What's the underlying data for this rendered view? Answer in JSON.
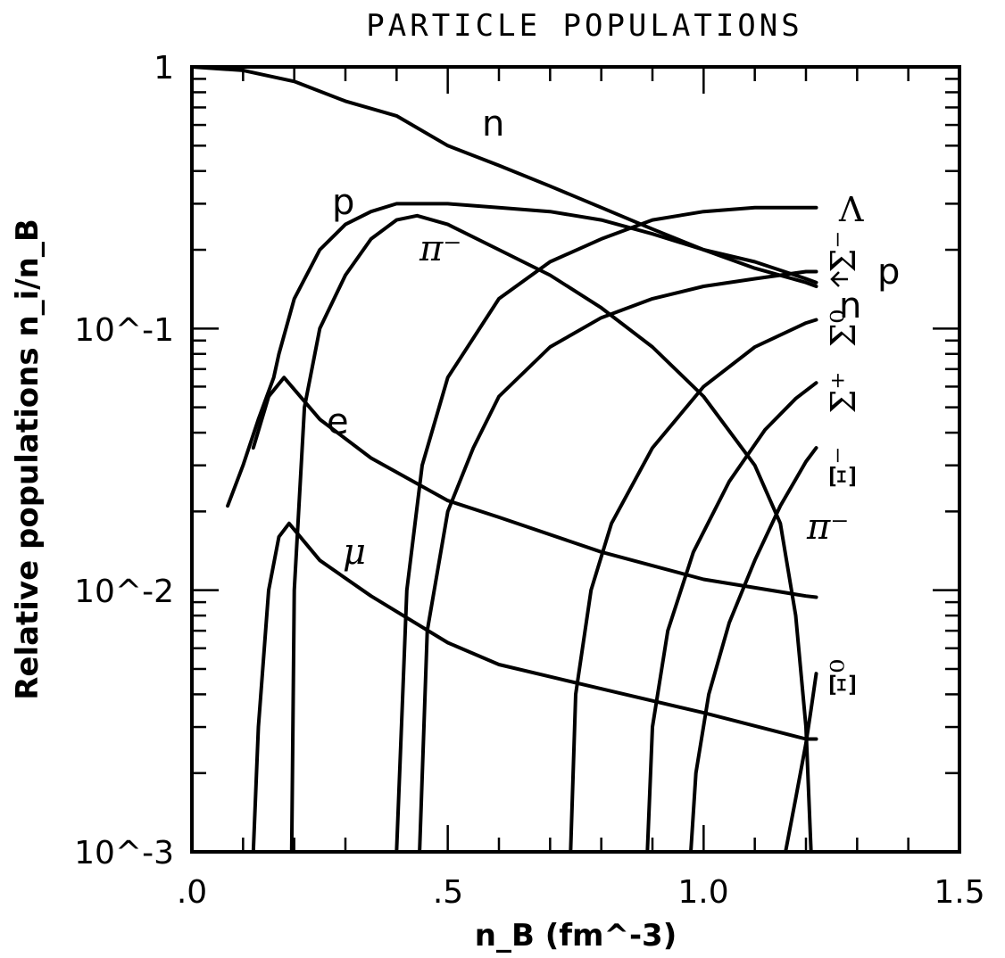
{
  "chart_data": {
    "type": "line",
    "title": "PARTICLE POPULATIONS",
    "xlabel": "n_B (fm^-3)",
    "ylabel": "Relative populations n_i/n_B",
    "xscale": "linear",
    "yscale": "log",
    "xlim": [
      0,
      1.5
    ],
    "ylim": [
      0.001,
      1
    ],
    "x_ticks": [
      ".0",
      ".5",
      "1.0",
      "1.5"
    ],
    "y_ticks": [
      "10^-3",
      "10^-2",
      "10^-1",
      "1"
    ],
    "grid": false,
    "series": [
      {
        "name": "n",
        "label": "n",
        "x": [
          0.0,
          0.1,
          0.2,
          0.3,
          0.4,
          0.5,
          0.6,
          0.7,
          0.8,
          0.9,
          1.0,
          1.1,
          1.2,
          1.22
        ],
        "y": [
          1.0,
          0.97,
          0.88,
          0.74,
          0.65,
          0.5,
          0.42,
          0.35,
          0.29,
          0.24,
          0.2,
          0.17,
          0.15,
          0.145
        ]
      },
      {
        "name": "p",
        "label": "p",
        "x": [
          0.07,
          0.1,
          0.13,
          0.16,
          0.17,
          0.2,
          0.25,
          0.3,
          0.35,
          0.4,
          0.45,
          0.5,
          0.6,
          0.7,
          0.8,
          0.9,
          1.0,
          1.1,
          1.2,
          1.22
        ],
        "y": [
          0.021,
          0.03,
          0.045,
          0.065,
          0.08,
          0.13,
          0.2,
          0.25,
          0.28,
          0.3,
          0.3,
          0.3,
          0.29,
          0.28,
          0.26,
          0.23,
          0.2,
          0.18,
          0.155,
          0.15
        ]
      },
      {
        "name": "pi-",
        "label": "π⁻",
        "x": [
          0.195,
          0.2,
          0.22,
          0.25,
          0.3,
          0.35,
          0.4,
          0.44,
          0.5,
          0.6,
          0.7,
          0.8,
          0.9,
          1.0,
          1.1,
          1.15,
          1.18,
          1.2,
          1.21
        ],
        "y": [
          0.001,
          0.01,
          0.05,
          0.1,
          0.16,
          0.22,
          0.26,
          0.27,
          0.25,
          0.2,
          0.16,
          0.12,
          0.085,
          0.055,
          0.03,
          0.018,
          0.008,
          0.003,
          0.001
        ]
      },
      {
        "name": "e",
        "label": "e",
        "x": [
          0.12,
          0.15,
          0.18,
          0.25,
          0.35,
          0.5,
          0.6,
          0.8,
          1.0,
          1.2,
          1.22
        ],
        "y": [
          0.035,
          0.055,
          0.065,
          0.045,
          0.032,
          0.022,
          0.019,
          0.014,
          0.011,
          0.0095,
          0.0094
        ]
      },
      {
        "name": "mu",
        "label": "μ",
        "x": [
          0.12,
          0.13,
          0.15,
          0.17,
          0.19,
          0.25,
          0.35,
          0.5,
          0.6,
          0.8,
          1.0,
          1.2,
          1.22
        ],
        "y": [
          0.001,
          0.003,
          0.01,
          0.016,
          0.018,
          0.013,
          0.0095,
          0.0063,
          0.0052,
          0.0042,
          0.0034,
          0.0027,
          0.0027
        ]
      },
      {
        "name": "Lambda",
        "label": "Λ",
        "x": [
          0.4,
          0.42,
          0.45,
          0.5,
          0.6,
          0.7,
          0.8,
          0.9,
          1.0,
          1.1,
          1.2,
          1.22
        ],
        "y": [
          0.001,
          0.01,
          0.03,
          0.065,
          0.13,
          0.18,
          0.22,
          0.26,
          0.28,
          0.29,
          0.29,
          0.29
        ]
      },
      {
        "name": "Sigma-",
        "label": "Σ⁻",
        "x": [
          0.445,
          0.46,
          0.5,
          0.55,
          0.6,
          0.7,
          0.8,
          0.9,
          1.0,
          1.1,
          1.2,
          1.22
        ],
        "y": [
          0.001,
          0.007,
          0.02,
          0.035,
          0.055,
          0.085,
          0.11,
          0.13,
          0.145,
          0.155,
          0.165,
          0.165
        ]
      },
      {
        "name": "Sigma0",
        "label": "Σ⁰",
        "x": [
          0.74,
          0.75,
          0.78,
          0.82,
          0.9,
          1.0,
          1.1,
          1.2,
          1.22
        ],
        "y": [
          0.001,
          0.004,
          0.01,
          0.018,
          0.035,
          0.06,
          0.085,
          0.105,
          0.108
        ]
      },
      {
        "name": "Sigma+",
        "label": "Σ⁺",
        "x": [
          0.89,
          0.9,
          0.93,
          0.98,
          1.05,
          1.12,
          1.18,
          1.22
        ],
        "y": [
          0.001,
          0.003,
          0.007,
          0.014,
          0.026,
          0.041,
          0.054,
          0.062
        ]
      },
      {
        "name": "Xi-",
        "label": "Ξ⁻",
        "x": [
          0.975,
          0.985,
          1.01,
          1.05,
          1.1,
          1.15,
          1.2,
          1.22
        ],
        "y": [
          0.001,
          0.002,
          0.004,
          0.0075,
          0.013,
          0.021,
          0.031,
          0.035
        ]
      },
      {
        "name": "Xi0",
        "label": "Ξ⁰",
        "x": [
          1.16,
          1.18,
          1.2,
          1.21,
          1.22
        ],
        "y": [
          0.001,
          0.0016,
          0.0026,
          0.0035,
          0.0048
        ]
      }
    ],
    "annotations": [
      {
        "text": "n",
        "target": "n"
      },
      {
        "text": "p",
        "target": "p"
      },
      {
        "text": "π⁻",
        "target": "pi-"
      },
      {
        "text": "e",
        "target": "e"
      },
      {
        "text": "μ",
        "target": "mu"
      },
      {
        "text": "π⁻",
        "target": "pi-"
      },
      {
        "text": "Λ",
        "target": "Lambda"
      },
      {
        "text": "Σ⁻",
        "target": "Sigma-"
      },
      {
        "text": "p",
        "target": "p"
      },
      {
        "text": "n",
        "target": "n"
      },
      {
        "text": "Σ⁰",
        "target": "Sigma0"
      },
      {
        "text": "Σ⁺",
        "target": "Sigma+"
      },
      {
        "text": "Ξ⁻",
        "target": "Xi-"
      },
      {
        "text": "Ξ⁰",
        "target": "Xi0"
      }
    ]
  }
}
